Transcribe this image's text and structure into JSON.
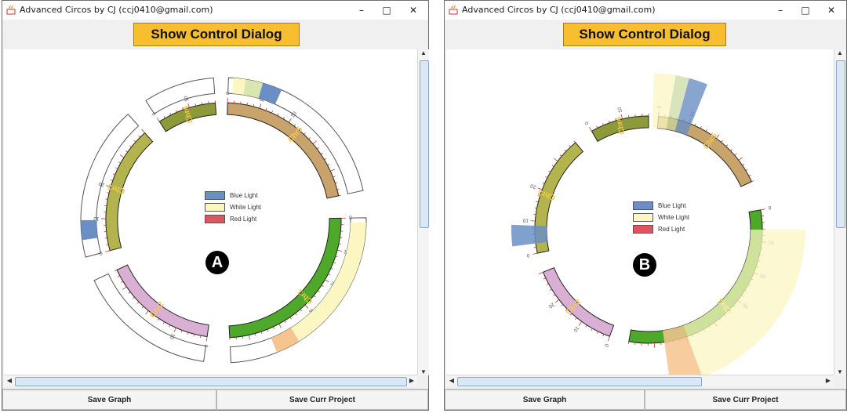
{
  "windows": [
    {
      "title": "Advanced Circos by CJ (ccj0410@gmail.com)",
      "controls": {
        "minimize": "–",
        "maximize": "□",
        "close": "✕"
      },
      "show_button": "Show Control Dialog",
      "panel_marker": "A",
      "legend": [
        {
          "label": "Blue Light",
          "color": "#6a8fc4"
        },
        {
          "label": "White Light",
          "color": "#fbf6c2"
        },
        {
          "label": "Red Light",
          "color": "#e05361"
        }
      ],
      "chromosomes": [
        {
          "label": "Chr1",
          "color": "#4ea82a",
          "ticks": [
            "0",
            "10",
            "20",
            "30"
          ]
        },
        {
          "label": "Chr2",
          "color": "#d9b0d4",
          "ticks": [
            "0",
            "10"
          ]
        },
        {
          "label": "Chr3",
          "color": "#b4b44e",
          "ticks": [
            "0",
            "10",
            "20"
          ]
        },
        {
          "label": "Chr4",
          "color": "#8d9a3a",
          "ticks": [
            "0",
            "10"
          ]
        },
        {
          "label": "Chr5",
          "color": "#c9a36c",
          "ticks": [
            "0",
            "10",
            "20"
          ]
        }
      ],
      "buttons": {
        "save_graph": "Save Graph",
        "save_project": "Save Curr Project"
      }
    },
    {
      "title": "Advanced Circos by CJ (ccj0410@gmail.com)",
      "controls": {
        "minimize": "–",
        "maximize": "□",
        "close": "✕"
      },
      "show_button": "Show Control Dialog",
      "panel_marker": "B",
      "legend": [
        {
          "label": "Blue Light",
          "color": "#6a8fc4"
        },
        {
          "label": "White Light",
          "color": "#fbf6c2"
        },
        {
          "label": "Red Light",
          "color": "#e05361"
        }
      ],
      "chromosomes": [
        {
          "label": "Chr1",
          "color": "#4ea82a",
          "ticks": [
            "0",
            "10",
            "20",
            "30"
          ]
        },
        {
          "label": "Chr2",
          "color": "#d9b0d4",
          "ticks": [
            "0",
            "10",
            "20"
          ]
        },
        {
          "label": "Chr3",
          "color": "#b4b44e",
          "ticks": [
            "0",
            "10",
            "20"
          ]
        },
        {
          "label": "Chr4",
          "color": "#8d9a3a",
          "ticks": [
            "0",
            "10"
          ]
        },
        {
          "label": "Chr5",
          "color": "#c9a36c",
          "ticks": [
            "0",
            "10"
          ]
        }
      ],
      "buttons": {
        "save_graph": "Save Graph",
        "save_project": "Save Curr Project"
      }
    }
  ]
}
